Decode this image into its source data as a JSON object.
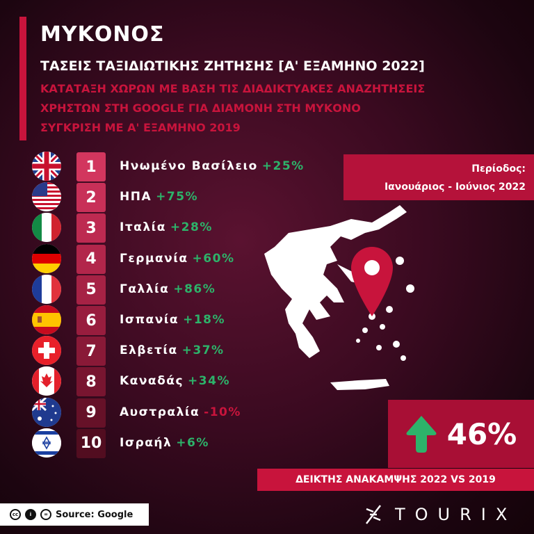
{
  "header": {
    "title": "ΜΥΚΟΝΟΣ",
    "subtitle": "ΤΑΣΕΙΣ ΤΑΞΙΔΙΩΤΙΚΗΣ ΖΗΤΗΣΗΣ [Α' ΕΞΑΜΗΝΟ 2022]",
    "description_lines": [
      "ΚΑΤΑΤΑΞΗ ΧΩΡΩΝ ΜΕ ΒΑΣΗ ΤΙΣ ΔΙΑΔΙΚΤΥΑΚΕΣ ΑΝΑΖΗΤΗΣΕΙΣ",
      "ΧΡΗΣΤΩΝ ΣΤΗ GOOGLE ΓΙΑ ΔΙΑΜΟΝΗ ΣΤΗ ΜΥΚΟΝΟ",
      "ΣΥΓΚΡΙΣΗ ΜΕ Α' ΕΞΑΜΗΝΟ 2019"
    ]
  },
  "ranking": [
    {
      "rank": "1",
      "country": "Ηνωμένο Βασίλειο",
      "change": "+25%",
      "flag": "uk-flag"
    },
    {
      "rank": "2",
      "country": "ΗΠΑ",
      "change": "+75%",
      "flag": "usa-flag"
    },
    {
      "rank": "3",
      "country": "Ιταλία",
      "change": "+28%",
      "flag": "italy-flag"
    },
    {
      "rank": "4",
      "country": "Γερμανία",
      "change": "+60%",
      "flag": "germany-flag"
    },
    {
      "rank": "5",
      "country": "Γαλλία",
      "change": "+86%",
      "flag": "france-flag"
    },
    {
      "rank": "6",
      "country": "Ισπανία",
      "change": "+18%",
      "flag": "spain-flag"
    },
    {
      "rank": "7",
      "country": "Ελβετία",
      "change": "+37%",
      "flag": "switzerland-flag"
    },
    {
      "rank": "8",
      "country": "Καναδάς",
      "change": "+34%",
      "flag": "canada-flag"
    },
    {
      "rank": "9",
      "country": "Αυστραλία",
      "change": "-10%",
      "flag": "australia-flag"
    },
    {
      "rank": "10",
      "country": "Ισραήλ",
      "change": "+6%",
      "flag": "israel-flag"
    }
  ],
  "period": {
    "label": "Περίοδος:",
    "value": "Ιανουάριος - Ιούνιος 2022"
  },
  "recovery": {
    "value": "46%",
    "label": "ΔΕΙΚΤΗΣ ΑΝΑΚΑΜΨΗΣ 2022 VS 2019",
    "icon": "arrow-up-icon"
  },
  "footer": {
    "source": "Source: Google",
    "logo": "TOURIX"
  },
  "colors": {
    "accent": "#c8143c",
    "positive": "#2db36a",
    "background": "#3a0a20"
  }
}
